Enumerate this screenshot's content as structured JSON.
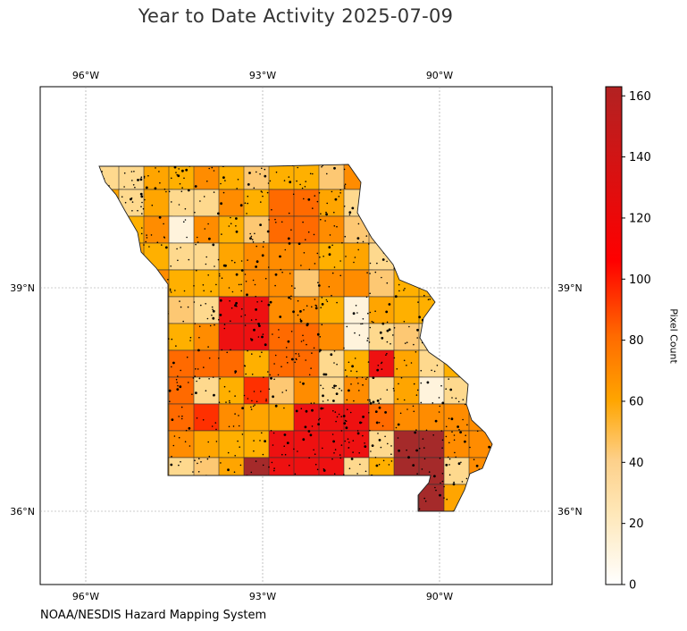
{
  "title": "Year to Date Activity 2025-07-09",
  "credit": "NOAA/NESDIS Hazard Mapping System",
  "map": {
    "region": "Missouri counties",
    "lon_labels": [
      "96°W",
      "93°W",
      "90°W"
    ],
    "lat_labels": [
      "39°N",
      "36°N"
    ],
    "grid": true
  },
  "colorbar": {
    "label": "Pixel Count",
    "ticks": [
      "0",
      "20",
      "40",
      "60",
      "80",
      "100",
      "120",
      "140",
      "160"
    ],
    "range": [
      0,
      163
    ],
    "colors": [
      "#ffffff",
      "#fed98e",
      "#ffa500",
      "#ff6a00",
      "#ff0000",
      "#b22222"
    ]
  },
  "chart_data": {
    "type": "heatmap",
    "title": "Year to Date Activity 2025-07-09",
    "colorbar_label": "Pixel Count",
    "value_range": [
      0,
      163
    ],
    "x_ticks": [
      "96°W",
      "93°W",
      "90°W"
    ],
    "y_ticks": [
      "39°N",
      "36°N"
    ]
  }
}
